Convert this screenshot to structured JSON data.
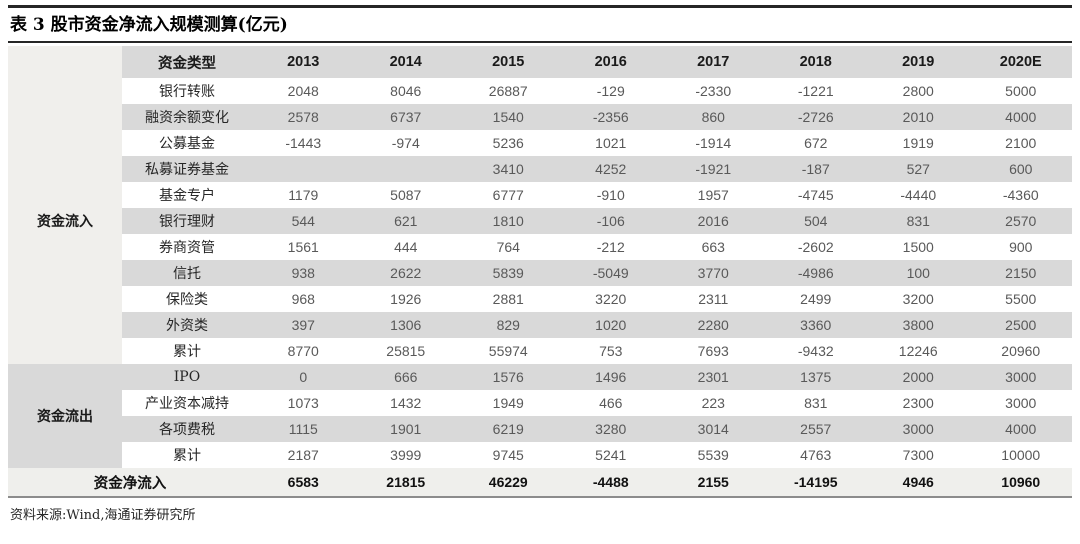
{
  "page": {
    "title": "表 3 股市资金净流入规模测算(亿元)",
    "source_note": "资料来源:Wind,海通证券研究所"
  },
  "colors": {
    "stripe_gray": "#d9d9d9",
    "light_gray": "#f0efec",
    "rule_dark": "#262626",
    "rule_bottom": "#8c8c8c",
    "number_text": "#595959"
  },
  "chart_data": {
    "type": "table",
    "title": "表 3 股市资金净流入规模测算(亿元)",
    "unit": "亿元",
    "columns": [
      "资金类型",
      "2013",
      "2014",
      "2015",
      "2016",
      "2017",
      "2018",
      "2019",
      "2020E"
    ],
    "row_groups": [
      {
        "label": "资金流入",
        "rows": [
          {
            "label": "银行转账",
            "values": [
              "2048",
              "8046",
              "26887",
              "-129",
              "-2330",
              "-1221",
              "2800",
              "5000"
            ]
          },
          {
            "label": "融资余额变化",
            "values": [
              "2578",
              "6737",
              "1540",
              "-2356",
              "860",
              "-2726",
              "2010",
              "4000"
            ]
          },
          {
            "label": "公募基金",
            "values": [
              "-1443",
              "-974",
              "5236",
              "1021",
              "-1914",
              "672",
              "1919",
              "2100"
            ]
          },
          {
            "label": "私募证券基金",
            "values": [
              "",
              "",
              "3410",
              "4252",
              "-1921",
              "-187",
              "527",
              "600"
            ]
          },
          {
            "label": "基金专户",
            "values": [
              "1179",
              "5087",
              "6777",
              "-910",
              "1957",
              "-4745",
              "-4440",
              "-4360"
            ]
          },
          {
            "label": "银行理财",
            "values": [
              "544",
              "621",
              "1810",
              "-106",
              "2016",
              "504",
              "831",
              "2570"
            ]
          },
          {
            "label": "券商资管",
            "values": [
              "1561",
              "444",
              "764",
              "-212",
              "663",
              "-2602",
              "1500",
              "900"
            ]
          },
          {
            "label": "信托",
            "values": [
              "938",
              "2622",
              "5839",
              "-5049",
              "3770",
              "-4986",
              "100",
              "2150"
            ]
          },
          {
            "label": "保险类",
            "values": [
              "968",
              "1926",
              "2881",
              "3220",
              "2311",
              "2499",
              "3200",
              "5500"
            ]
          },
          {
            "label": "外资类",
            "values": [
              "397",
              "1306",
              "829",
              "1020",
              "2280",
              "3360",
              "3800",
              "2500"
            ]
          },
          {
            "label": "累计",
            "values": [
              "8770",
              "25815",
              "55974",
              "753",
              "7693",
              "-9432",
              "12246",
              "20960"
            ]
          }
        ]
      },
      {
        "label": "资金流出",
        "rows": [
          {
            "label": "IPO",
            "values": [
              "0",
              "666",
              "1576",
              "1496",
              "2301",
              "1375",
              "2000",
              "3000"
            ]
          },
          {
            "label": "产业资本减持",
            "values": [
              "1073",
              "1432",
              "1949",
              "466",
              "223",
              "831",
              "2300",
              "3000"
            ]
          },
          {
            "label": "各项费税",
            "values": [
              "1115",
              "1901",
              "6219",
              "3280",
              "3014",
              "2557",
              "3000",
              "4000"
            ]
          },
          {
            "label": "累计",
            "values": [
              "2187",
              "3999",
              "9745",
              "5241",
              "5539",
              "4763",
              "7300",
              "10000"
            ]
          }
        ]
      }
    ],
    "summary_row": {
      "label": "资金净流入",
      "values": [
        "6583",
        "21815",
        "46229",
        "-4488",
        "2155",
        "-14195",
        "4946",
        "10960"
      ]
    }
  }
}
